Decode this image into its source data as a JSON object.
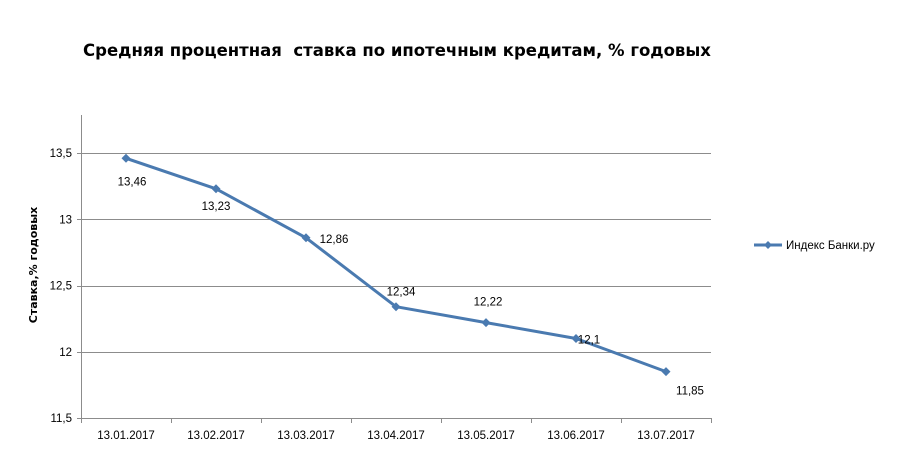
{
  "chart_data": {
    "type": "line",
    "title": "Средняя процентная  ставка по ипотечным кредитам, % годовых",
    "xlabel": "",
    "ylabel": "Ставка,% годовых",
    "categories": [
      "13.01.2017",
      "13.02.2017",
      "13.03.2017",
      "13.04.2017",
      "13.05.2017",
      "13.06.2017",
      "13.07.2017"
    ],
    "ylim": [
      11.5,
      13.5
    ],
    "yticks": [
      11.5,
      12,
      12.5,
      13,
      13.5
    ],
    "ytick_labels": [
      "11,5",
      "12",
      "12,5",
      "13",
      "13,5"
    ],
    "grid": true,
    "legend_position": "right",
    "series": [
      {
        "name": "Индекс Банки.ру",
        "color": "#4a7ab0",
        "marker": "diamond",
        "values": [
          13.46,
          13.23,
          12.86,
          12.34,
          12.22,
          12.1,
          11.85
        ],
        "labels": [
          "13,46",
          "13,23",
          "12,86",
          "12,34",
          "12,22",
          "12,1",
          "11,85"
        ]
      }
    ]
  }
}
